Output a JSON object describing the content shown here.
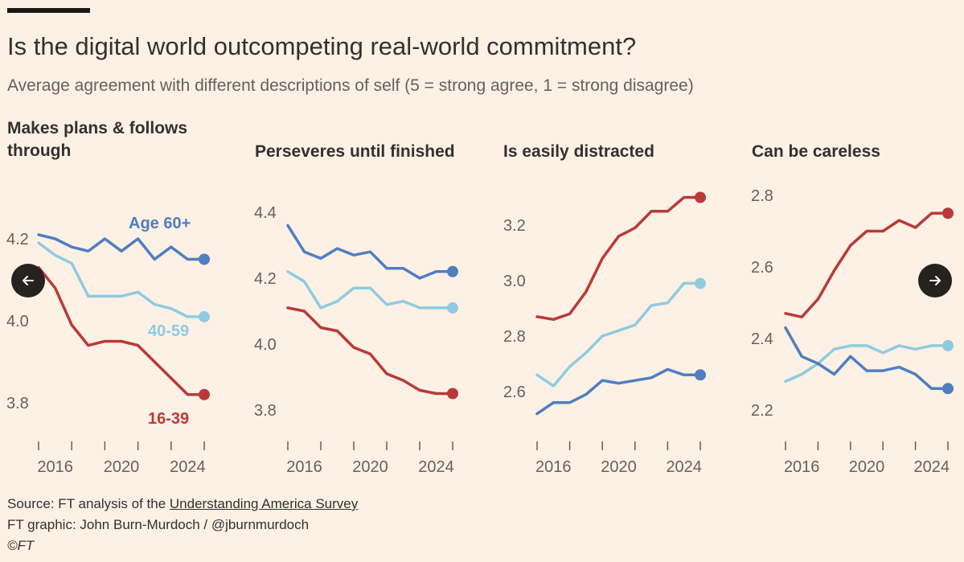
{
  "header": {
    "title": "Is the digital world outcompeting real-world commitment?",
    "subtitle": "Average agreement with different descriptions of self (5 = strong agree, 1 = strong disagree)"
  },
  "colors": {
    "age_60_plus": "#4F7EC1",
    "age_40_59": "#8ECBE0",
    "age_16_39": "#B83A3A",
    "text": "#33302E",
    "muted": "#66605C",
    "background": "#FDF1E5"
  },
  "series_labels": {
    "age_60_plus": "Age 60+",
    "age_40_59": "40-59",
    "age_16_39": "16-39"
  },
  "chart_data": [
    {
      "type": "line",
      "title": "Makes plans & follows through",
      "x": [
        2015,
        2016,
        2017,
        2018,
        2019,
        2020,
        2021,
        2022,
        2023,
        2024,
        2025
      ],
      "xticks": [
        2016,
        2020,
        2024
      ],
      "ylim": [
        3.75,
        4.275
      ],
      "yticks": [
        3.8,
        4.0,
        4.2
      ],
      "ytick_labels": [
        "3.8",
        "4.0",
        "4.2"
      ],
      "series": [
        {
          "name": "Age 60+",
          "key": "age_60_plus",
          "values": [
            4.21,
            4.2,
            4.18,
            4.17,
            4.2,
            4.17,
            4.2,
            4.15,
            4.18,
            4.15,
            4.15
          ]
        },
        {
          "name": "40-59",
          "key": "age_40_59",
          "values": [
            4.19,
            4.16,
            4.14,
            4.06,
            4.06,
            4.06,
            4.07,
            4.04,
            4.03,
            4.01,
            4.01
          ]
        },
        {
          "name": "16-39",
          "key": "age_16_39",
          "values": [
            4.13,
            4.08,
            3.99,
            3.94,
            3.95,
            3.95,
            3.94,
            3.9,
            3.86,
            3.82,
            3.82
          ]
        }
      ]
    },
    {
      "type": "line",
      "title": "Perseveres until finished",
      "x": [
        2015,
        2016,
        2017,
        2018,
        2019,
        2020,
        2021,
        2022,
        2023,
        2024,
        2025
      ],
      "xticks": [
        2016,
        2020,
        2024
      ],
      "ylim": [
        3.75,
        4.45
      ],
      "yticks": [
        3.8,
        4.0,
        4.2,
        4.4
      ],
      "ytick_labels": [
        "3.8",
        "4.0",
        "4.2",
        "4.4"
      ],
      "series": [
        {
          "name": "Age 60+",
          "key": "age_60_plus",
          "values": [
            4.36,
            4.28,
            4.26,
            4.29,
            4.27,
            4.28,
            4.23,
            4.23,
            4.2,
            4.22,
            4.22
          ]
        },
        {
          "name": "40-59",
          "key": "age_40_59",
          "values": [
            4.22,
            4.19,
            4.11,
            4.13,
            4.17,
            4.17,
            4.12,
            4.13,
            4.11,
            4.11,
            4.11
          ]
        },
        {
          "name": "16-39",
          "key": "age_16_39",
          "values": [
            4.11,
            4.1,
            4.05,
            4.04,
            3.99,
            3.97,
            3.91,
            3.89,
            3.86,
            3.85,
            3.85
          ]
        }
      ]
    },
    {
      "type": "line",
      "title": "Is easily distracted",
      "x": [
        2015,
        2016,
        2017,
        2018,
        2019,
        2020,
        2021,
        2022,
        2023,
        2024,
        2025
      ],
      "xticks": [
        2016,
        2020,
        2024
      ],
      "ylim": [
        2.5,
        3.32
      ],
      "yticks": [
        2.6,
        2.8,
        3.0,
        3.2
      ],
      "ytick_labels": [
        "2.6",
        "2.8",
        "3.0",
        "3.2"
      ],
      "series": [
        {
          "name": "Age 60+",
          "key": "age_60_plus",
          "values": [
            2.52,
            2.56,
            2.56,
            2.59,
            2.64,
            2.63,
            2.64,
            2.65,
            2.68,
            2.66,
            2.66
          ]
        },
        {
          "name": "40-59",
          "key": "age_40_59",
          "values": [
            2.66,
            2.62,
            2.69,
            2.74,
            2.8,
            2.82,
            2.84,
            2.91,
            2.92,
            2.99,
            2.99
          ]
        },
        {
          "name": "16-39",
          "key": "age_16_39",
          "values": [
            2.87,
            2.86,
            2.88,
            2.96,
            3.08,
            3.16,
            3.19,
            3.25,
            3.25,
            3.3,
            3.3
          ]
        }
      ]
    },
    {
      "type": "line",
      "title": "Can be careless",
      "x": [
        2015,
        2016,
        2017,
        2018,
        2019,
        2020,
        2021,
        2022,
        2023,
        2024,
        2025
      ],
      "xticks": [
        2016,
        2020,
        2024
      ],
      "ylim": [
        2.19,
        2.8
      ],
      "yticks": [
        2.2,
        2.4,
        2.6,
        2.8
      ],
      "ytick_labels": [
        "2.2",
        "2.4",
        "2.6",
        "2.8"
      ],
      "series": [
        {
          "name": "Age 60+",
          "key": "age_60_plus",
          "values": [
            2.43,
            2.35,
            2.33,
            2.3,
            2.35,
            2.31,
            2.31,
            2.32,
            2.3,
            2.26,
            2.26
          ]
        },
        {
          "name": "40-59",
          "key": "age_40_59",
          "values": [
            2.28,
            2.3,
            2.33,
            2.37,
            2.38,
            2.38,
            2.36,
            2.38,
            2.37,
            2.38,
            2.38
          ]
        },
        {
          "name": "16-39",
          "key": "age_16_39",
          "values": [
            2.47,
            2.46,
            2.51,
            2.59,
            2.66,
            2.7,
            2.7,
            2.73,
            2.71,
            2.75,
            2.75
          ]
        }
      ]
    }
  ],
  "footer": {
    "source_prefix": "Source: FT analysis of the ",
    "source_link": "Understanding America Survey",
    "credit": "FT graphic: John Burn-Murdoch / @jburnmurdoch",
    "copyright": "©FT"
  },
  "nav": {
    "prev_icon": "arrow-left-icon",
    "next_icon": "arrow-right-icon"
  }
}
